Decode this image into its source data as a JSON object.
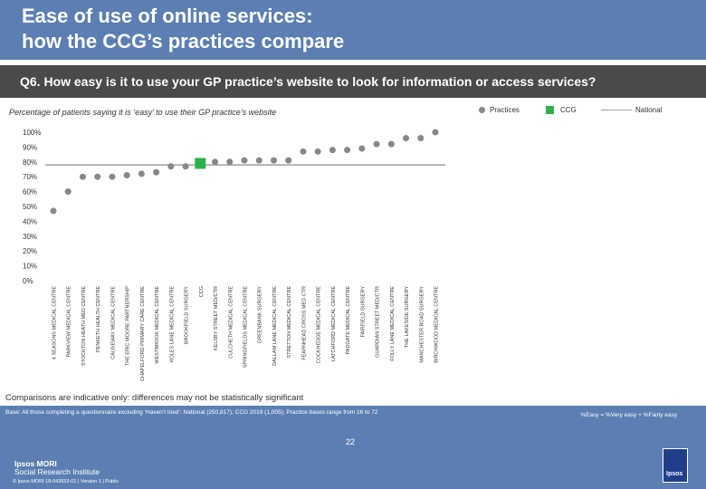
{
  "header": {
    "title_line1": "Ease of use of online services:",
    "title_line2": "how the CCG’s practices compare"
  },
  "question": "Q6. How easy is it to use your GP practice’s website to look for information or access services?",
  "subtitle": "Percentage of patients saying it is ‘easy’ to use their GP practice’s website",
  "legend": {
    "practices": "Practices",
    "ccg": "CCG",
    "national": "National"
  },
  "colors": {
    "header": "#5b7fb2",
    "practice_marker": "#888888",
    "ccg_marker": "#2bb14a",
    "national_line": "#a0a0a0"
  },
  "chart_data": {
    "type": "scatter",
    "title": "Percentage of patients saying it is ‘easy’ to use their GP practice’s website",
    "ylim": [
      0,
      100
    ],
    "yticks": [
      "100%",
      "90%",
      "80%",
      "70%",
      "60%",
      "50%",
      "40%",
      "30%",
      "20%",
      "10%",
      "0%"
    ],
    "ytick_values": [
      100,
      90,
      80,
      70,
      60,
      50,
      40,
      30,
      20,
      10,
      0
    ],
    "national": 78,
    "categories": [
      "4 SEASONS MEDICAL CENTRE",
      "PARKVIEW MEDICAL CENTRE",
      "STOCKTON HEATH MED CENTRE",
      "PENKETH HEALTH CENTRE",
      "CAUSEWAY MEDICAL CENTRE",
      "THE ERIC MOORE PARTNERSHIP",
      "CHAPELFORD PRIMARY CARE CENTRE",
      "WESTBROOK MEDICAL CENTRE",
      "HOLES LANE MEDICAL CENTRE",
      "BROOKFIELD SURGERY",
      "CCG",
      "KELSBY STREET MED/CTR",
      "CULCHETH MEDICAL CENTRE",
      "SPRINGFIELDS MEDICAL CENTRE",
      "GREENBANK SURGERY",
      "DALLAM LANE MEDICAL CENTRE",
      "STRETTON MEDICAL CENTRE",
      "FEARNHEAD CROSS MED CTR",
      "COCKHEDGE MEDICAL CENTRE",
      "LATCHFORD MEDICAL CENTRE",
      "PADGATE MEDICAL CENTRE",
      "FAIRFIELD SURGERY",
      "GUARDIAN STREET MED/CTR",
      "FOLLY LANE MEDICAL CENTRE",
      "THE LAKESIDE SURGERY",
      "MANCHESTER ROAD SURGERY",
      "BIRCHWOOD MEDICAL CENTRE"
    ],
    "values": [
      47,
      60,
      70,
      70,
      70,
      71,
      72,
      73,
      77,
      77,
      79,
      80,
      80,
      81,
      81,
      81,
      81,
      87,
      87,
      88,
      88,
      89,
      92,
      92,
      96,
      96,
      100
    ],
    "kinds": [
      "practice",
      "practice",
      "practice",
      "practice",
      "practice",
      "practice",
      "practice",
      "practice",
      "practice",
      "practice",
      "ccg",
      "practice",
      "practice",
      "practice",
      "practice",
      "practice",
      "practice",
      "practice",
      "practice",
      "practice",
      "practice",
      "practice",
      "practice",
      "practice",
      "practice",
      "practice",
      "practice"
    ]
  },
  "comparisons_note": "Comparisons are indicative only: differences may not be statistically significant",
  "footer": {
    "base": "Base: All those completing a questionnaire excluding ‘Haven’t tried’: National (250,817); CCG 2019 (1,005); Practice bases range from 16 to 72",
    "note": "%Easy = %Very easy + %Fairly easy",
    "page_number": "22",
    "logo_line1": "Ipsos MORI",
    "logo_line2": "Social Research Institute",
    "copyright": "© Ipsos MORI     18-042653-01 | Version 1 | Public",
    "badge": "Ipsos"
  }
}
